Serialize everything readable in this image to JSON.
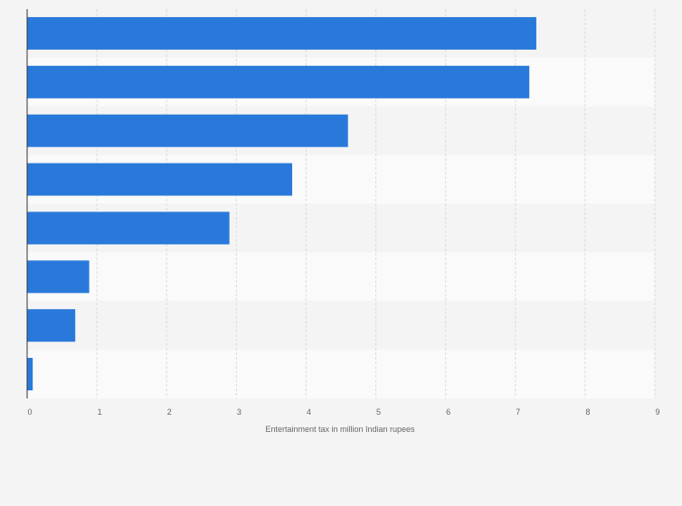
{
  "chart_data": {
    "type": "bar",
    "orientation": "horizontal",
    "categories": [
      "",
      "",
      "",
      "",
      "",
      "",
      "",
      ""
    ],
    "values": [
      7.3,
      7.2,
      4.6,
      3.8,
      2.9,
      0.89,
      0.69,
      0.08
    ],
    "xlabel": "Entertainment tax in million Indian rupees",
    "ylabel": "",
    "xlim": [
      0,
      9
    ],
    "xticks": [
      0,
      1,
      2,
      3,
      4,
      5,
      6,
      7,
      8,
      9
    ],
    "grid": true,
    "bar_color": "#2979db",
    "stripe_colors": [
      "#f4f4f4",
      "#fafafa"
    ]
  }
}
